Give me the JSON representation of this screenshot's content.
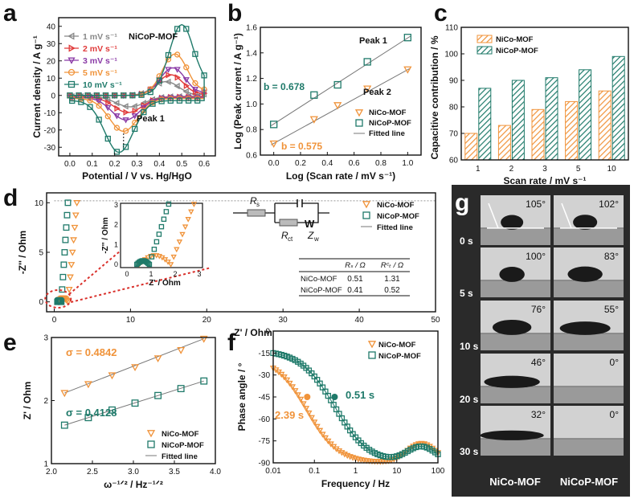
{
  "colors": {
    "nico": "#f0933a",
    "nicop": "#1f7a6a",
    "fit": "#777777",
    "cv": [
      "#888888",
      "#e03a3a",
      "#8a3aa6",
      "#f0933a",
      "#1f7a6a"
    ],
    "inset_red": "#d9302b"
  },
  "panel_labels": [
    "a",
    "b",
    "c",
    "d",
    "e",
    "f",
    "g"
  ],
  "chart_data": [
    {
      "panel": "a",
      "type": "line",
      "title": "NiCoP-MOF",
      "xlabel": "Potential / V vs. Hg/HgO",
      "ylabel": "Current density / A g⁻¹",
      "xlim": [
        -0.05,
        0.65
      ],
      "ylim": [
        -35,
        45
      ],
      "xticks": [
        "0.0",
        "0.1",
        "0.2",
        "0.3",
        "0.4",
        "0.5",
        "0.6"
      ],
      "yticks": [
        "-30",
        "-20",
        "-10",
        "0",
        "10",
        "20",
        "30",
        "40"
      ],
      "annotation": "Peak 1",
      "series": [
        {
          "name": "1 mV s⁻¹",
          "marker": "triangle-left",
          "peak_anodic": [
            0.43,
            8
          ],
          "peak_cathodic": [
            0.27,
            -6
          ]
        },
        {
          "name": "2 mV s⁻¹",
          "marker": "triangle-right",
          "peak_anodic": [
            0.45,
            12
          ],
          "peak_cathodic": [
            0.26,
            -9
          ]
        },
        {
          "name": "3 mV s⁻¹",
          "marker": "triangle-down",
          "peak_anodic": [
            0.46,
            16
          ],
          "peak_cathodic": [
            0.25,
            -13
          ]
        },
        {
          "name": "5 mV s⁻¹",
          "marker": "circle",
          "peak_anodic": [
            0.47,
            24
          ],
          "peak_cathodic": [
            0.24,
            -19
          ]
        },
        {
          "name": "10 mV s⁻¹",
          "marker": "square",
          "peak_anodic": [
            0.5,
            41
          ],
          "peak_cathodic": [
            0.22,
            -30
          ]
        }
      ]
    },
    {
      "panel": "b",
      "type": "scatter",
      "xlabel": "Log (Scan rate / mV s⁻¹)",
      "ylabel": "Log (Peak current / A g⁻¹)",
      "xlim": [
        -0.1,
        1.1
      ],
      "ylim": [
        0.6,
        1.6
      ],
      "xticks": [
        "0.0",
        "0.2",
        "0.4",
        "0.6",
        "0.8",
        "1.0"
      ],
      "yticks": [
        "0.6",
        "0.8",
        "1.0",
        "1.2",
        "1.4",
        "1.6"
      ],
      "labels": {
        "peak1": "Peak 1",
        "peak2": "Peak 2",
        "b_nicop": "b = 0.678",
        "b_nico": "b = 0.575"
      },
      "series": [
        {
          "name": "NiCo-MOF",
          "x": [
            0,
            0.301,
            0.477,
            0.699,
            1.0
          ],
          "y": [
            0.69,
            0.88,
            0.99,
            1.12,
            1.27
          ]
        },
        {
          "name": "NiCoP-MOF",
          "x": [
            0,
            0.301,
            0.477,
            0.699,
            1.0
          ],
          "y": [
            0.84,
            1.07,
            1.15,
            1.33,
            1.52
          ]
        },
        {
          "name": "Fitted line"
        }
      ]
    },
    {
      "panel": "c",
      "type": "bar",
      "xlabel": "Scan rate / mV s⁻¹",
      "ylabel": "Capacitive contribution / %",
      "ylim": [
        60,
        110
      ],
      "categories": [
        "1",
        "2",
        "3",
        "5",
        "10"
      ],
      "yticks": [
        "60",
        "70",
        "80",
        "90",
        "100",
        "110"
      ],
      "series": [
        {
          "name": "NiCo-MOF",
          "values": [
            70,
            73,
            79,
            82,
            86
          ]
        },
        {
          "name": "NiCoP-MOF",
          "values": [
            87,
            90,
            91,
            94,
            99
          ]
        }
      ]
    },
    {
      "panel": "d",
      "type": "scatter",
      "xlabel": "Z' / Ohm",
      "ylabel": "-Z'' / Ohm",
      "xlim": [
        -1,
        50
      ],
      "ylim": [
        -1,
        11
      ],
      "xticks": [
        "0",
        "10",
        "20",
        "30",
        "40",
        "50"
      ],
      "yticks": [
        "0",
        "5",
        "10"
      ],
      "inset": {
        "xlabel": "Z' / Ohm",
        "ylabel": "-Z'' / Ohm",
        "xticks": [
          "0",
          "1",
          "2",
          "3"
        ],
        "yticks": [
          "0",
          "1",
          "2",
          "3"
        ]
      },
      "circuit": {
        "rs": "R",
        "rs_sub": "s",
        "rct": "R",
        "rct_sub": "ct",
        "zw": "Z",
        "zw_sub": "w",
        "w": "W"
      },
      "table": {
        "headers": [
          "",
          "Rₛ / Ω",
          "Rᶜₜ / Ω"
        ],
        "rows": [
          [
            "NiCo-MOF",
            "0.51",
            "1.31"
          ],
          [
            "NiCoP-MOF",
            "0.41",
            "0.52"
          ]
        ]
      },
      "series": [
        {
          "name": "NiCo-MOF",
          "rs": 0.51,
          "rct": 1.31
        },
        {
          "name": "NiCoP-MOF",
          "rs": 0.41,
          "rct": 0.52
        },
        {
          "name": "Fitted line"
        }
      ]
    },
    {
      "panel": "e",
      "type": "scatter",
      "xlabel": "ω⁻¹ᐟ² / Hz⁻¹ᐟ²",
      "ylabel": "Z' / Ohm",
      "xlim": [
        2.0,
        4.0
      ],
      "ylim": [
        1.0,
        3.0
      ],
      "xticks": [
        "2.0",
        "2.5",
        "3.0",
        "3.5",
        "4.0"
      ],
      "yticks": [
        "1",
        "2",
        "3"
      ],
      "labels": {
        "sigma_nico": "σ = 0.4842",
        "sigma_nicop": "σ = 0.4128"
      },
      "series": [
        {
          "name": "NiCo-MOF",
          "x": [
            2.16,
            2.45,
            2.74,
            3.02,
            3.3,
            3.58,
            3.86
          ],
          "y": [
            2.12,
            2.26,
            2.4,
            2.53,
            2.67,
            2.8,
            2.98
          ]
        },
        {
          "name": "NiCoP-MOF",
          "x": [
            2.16,
            2.45,
            2.74,
            3.02,
            3.3,
            3.58,
            3.86
          ],
          "y": [
            1.61,
            1.73,
            1.85,
            1.96,
            2.08,
            2.19,
            2.31
          ]
        },
        {
          "name": "Fitted line"
        }
      ]
    },
    {
      "panel": "f",
      "type": "scatter",
      "xlabel": "Frequency / Hz",
      "ylabel": "Phase angle / °",
      "xscale": "log",
      "xlim": [
        0.01,
        100
      ],
      "ylim": [
        0,
        -90
      ],
      "xticks": [
        "0.01",
        "0.1",
        "1",
        "10",
        "100"
      ],
      "yticks": [
        "-90",
        "-75",
        "-60",
        "-45",
        "-30",
        "-15",
        "0"
      ],
      "labels": {
        "tau_nico": "2.39 s",
        "tau_nicop": "0.51 s"
      },
      "series": [
        {
          "name": "NiCo-MOF",
          "f_at_45": 0.067
        },
        {
          "name": "NiCoP-MOF",
          "f_at_45": 0.31
        }
      ]
    },
    {
      "panel": "g",
      "type": "table",
      "columns": [
        "NiCo-MOF",
        "NiCoP-MOF"
      ],
      "rows": [
        {
          "time": "0 s",
          "nico": "105°",
          "nicop": "102°"
        },
        {
          "time": "5 s",
          "nico": "100°",
          "nicop": "83°"
        },
        {
          "time": "10 s",
          "nico": "76°",
          "nicop": "55°"
        },
        {
          "time": "20 s",
          "nico": "46°",
          "nicop": "0°"
        },
        {
          "time": "30 s",
          "nico": "32°",
          "nicop": "0°"
        }
      ]
    }
  ]
}
